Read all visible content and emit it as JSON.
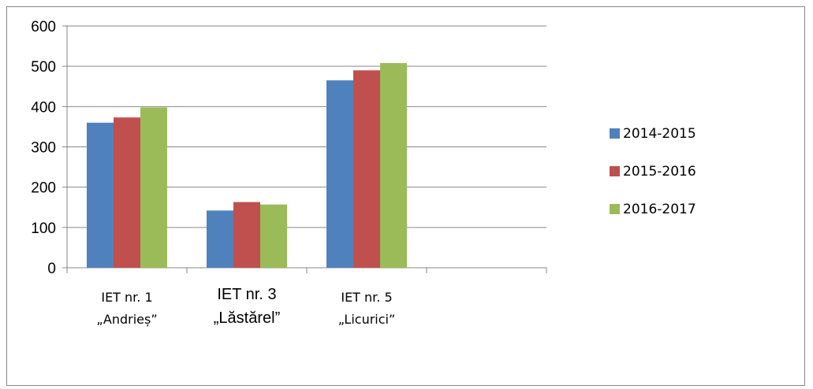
{
  "chart_data": {
    "type": "bar",
    "categories": [
      [
        "IET nr. 1",
        "„Andrieș”"
      ],
      [
        "IET nr. 3",
        "„Lăstărel”"
      ],
      [
        "IET nr. 5",
        "„Licurici”"
      ]
    ],
    "series": [
      {
        "name": "2014-2015",
        "color": "#4f81bd",
        "values": [
          360,
          142,
          465
        ]
      },
      {
        "name": "2015-2016",
        "color": "#c0504d",
        "values": [
          373,
          163,
          490
        ]
      },
      {
        "name": "2016-2017",
        "color": "#9bbb59",
        "values": [
          398,
          157,
          508
        ]
      }
    ],
    "ylim": [
      0,
      600
    ],
    "yticks": [
      "0",
      "100",
      "200",
      "300",
      "400",
      "500",
      "600"
    ],
    "grid": true,
    "legend": "right"
  }
}
